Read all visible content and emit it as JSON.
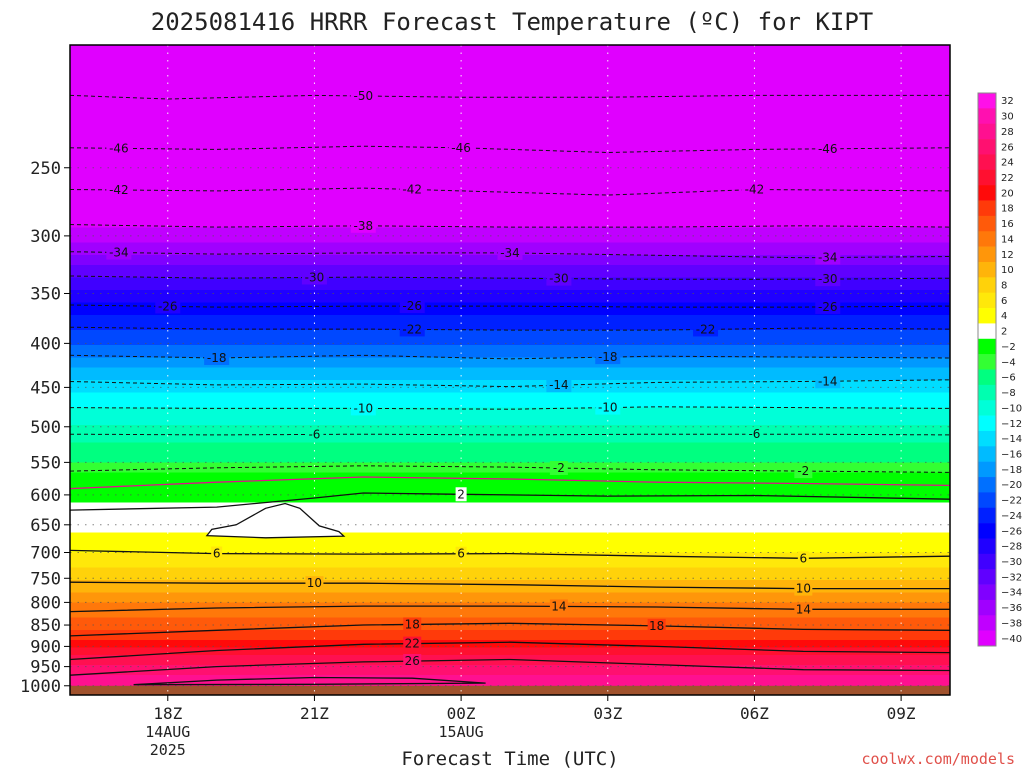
{
  "colors": {
    "ground": "#a0522d",
    "background": "#ffffff",
    "credit": "#e0504a",
    "freezing_line": "#e0108a"
  },
  "chart_data": {
    "type": "contour",
    "title": "2025081416 HRRR Forecast Temperature (ºC) for KIPT",
    "xlabel": "Forecast Time (UTC)",
    "credit": "coolwx.com/models",
    "x_unit": "hours from 2025-08-14 16Z",
    "xlim": [
      0,
      18
    ],
    "ylim": [
      1025,
      180
    ],
    "y_scale": "log-pressure (hPa, inverted)",
    "y_ticks": [
      250,
      300,
      350,
      400,
      450,
      500,
      550,
      600,
      650,
      700,
      750,
      800,
      850,
      900,
      950,
      1000
    ],
    "y_tick_labels": [
      "250",
      "300",
      "350",
      "400",
      "450",
      "500",
      "550",
      "600",
      "650",
      "700",
      "750",
      "800",
      "850",
      "900",
      "950",
      "1000"
    ],
    "x_ticks": [
      {
        "x": 2,
        "label": "18Z",
        "sub1": "14AUG",
        "sub2": "2025"
      },
      {
        "x": 5,
        "label": "21Z",
        "sub1": "",
        "sub2": ""
      },
      {
        "x": 8,
        "label": "00Z",
        "sub1": "15AUG",
        "sub2": ""
      },
      {
        "x": 11,
        "label": "03Z",
        "sub1": "",
        "sub2": ""
      },
      {
        "x": 14,
        "label": "06Z",
        "sub1": "",
        "sub2": ""
      },
      {
        "x": 17,
        "label": "09Z",
        "sub1": "",
        "sub2": ""
      }
    ],
    "ground_pressure": 1000,
    "profile": [
      [
        1000,
        30
      ],
      [
        950,
        27
      ],
      [
        900,
        22
      ],
      [
        850,
        17
      ],
      [
        800,
        14
      ],
      [
        750,
        10
      ],
      [
        700,
        6
      ],
      [
        650,
        3.5
      ],
      [
        600,
        1.5
      ],
      [
        580,
        0
      ],
      [
        550,
        -4
      ],
      [
        500,
        -7.5
      ],
      [
        450,
        -12.5
      ],
      [
        400,
        -20
      ],
      [
        350,
        -27
      ],
      [
        300,
        -37
      ],
      [
        250,
        -45
      ],
      [
        200,
        -52
      ]
    ],
    "colorbar": {
      "levels": [
        32,
        30,
        28,
        26,
        24,
        22,
        20,
        18,
        16,
        14,
        12,
        10,
        8,
        6,
        4,
        2,
        -2,
        -4,
        -6,
        -8,
        -10,
        -12,
        -14,
        -16,
        -18,
        -20,
        -22,
        -24,
        -26,
        -28,
        -30,
        -32,
        -34,
        -36,
        -38,
        -40
      ],
      "labels": [
        "32",
        "30",
        "28",
        "26",
        "24",
        "22",
        "20",
        "18",
        "16",
        "14",
        "12",
        "10",
        "8",
        "6",
        "4",
        "2",
        "−2",
        "−4",
        "−6",
        "−8",
        "−10",
        "−12",
        "−14",
        "−16",
        "−18",
        "−20",
        "−22",
        "−24",
        "−26",
        "−28",
        "−30",
        "−32",
        "−34",
        "−36",
        "−38",
        "−40"
      ],
      "colors": [
        "#ff10e8",
        "#ff10b0",
        "#ff1090",
        "#ff1070",
        "#ff1050",
        "#ff1030",
        "#ff0a0a",
        "#ff3a0a",
        "#ff5a0a",
        "#ff780a",
        "#ff960a",
        "#ffb40a",
        "#ffd20a",
        "#ffe80a",
        "#ffff00",
        "#ffffff",
        "#00ff00",
        "#33ff33",
        "#00ff80",
        "#00ffb0",
        "#00ffd8",
        "#00ffff",
        "#00ddff",
        "#00bbff",
        "#0099ff",
        "#0070ff",
        "#0048ff",
        "#0020ff",
        "#0000ff",
        "#2000ff",
        "#4000ff",
        "#6000ff",
        "#8000ff",
        "#a000ff",
        "#c000ff",
        "#e000ff"
      ]
    },
    "contours": [
      {
        "value": -50,
        "label": "-50",
        "style": "dash",
        "points": [
          [
            0,
            206
          ],
          [
            2,
            208
          ],
          [
            5,
            206
          ],
          [
            8,
            207
          ],
          [
            11,
            207
          ],
          [
            14,
            206
          ],
          [
            18,
            206
          ]
        ],
        "label_x": [
          6
        ]
      },
      {
        "value": -46,
        "label": "-46",
        "style": "dash",
        "points": [
          [
            0,
            237
          ],
          [
            3,
            238
          ],
          [
            6,
            236
          ],
          [
            8,
            237
          ],
          [
            11,
            240
          ],
          [
            14,
            238
          ],
          [
            18,
            237
          ]
        ],
        "label_x": [
          1,
          8,
          15.5
        ]
      },
      {
        "value": -42,
        "label": "-42",
        "style": "dash",
        "points": [
          [
            0,
            265
          ],
          [
            3,
            266
          ],
          [
            6,
            264
          ],
          [
            8,
            266
          ],
          [
            11,
            269
          ],
          [
            14,
            265
          ],
          [
            18,
            266
          ]
        ],
        "label_x": [
          1,
          7,
          14
        ]
      },
      {
        "value": -38,
        "label": "-38",
        "style": "dash",
        "points": [
          [
            0,
            291
          ],
          [
            3,
            293
          ],
          [
            6,
            292
          ],
          [
            9,
            293
          ],
          [
            12,
            293
          ],
          [
            15,
            292
          ],
          [
            18,
            293
          ]
        ],
        "label_x": [
          6
        ]
      },
      {
        "value": -34,
        "label": "-34",
        "style": "dash",
        "points": [
          [
            0,
            313
          ],
          [
            3,
            315
          ],
          [
            6,
            314
          ],
          [
            9,
            314
          ],
          [
            12,
            316
          ],
          [
            15,
            318
          ],
          [
            18,
            317
          ]
        ],
        "label_x": [
          1,
          9,
          15.5
        ]
      },
      {
        "value": -30,
        "label": "-30",
        "style": "dash",
        "points": [
          [
            0,
            334
          ],
          [
            3,
            336
          ],
          [
            6,
            335
          ],
          [
            9,
            336
          ],
          [
            12,
            337
          ],
          [
            15,
            337
          ],
          [
            18,
            336
          ]
        ],
        "label_x": [
          5,
          10,
          15.5
        ]
      },
      {
        "value": -26,
        "label": "-26",
        "style": "dash",
        "points": [
          [
            0,
            361
          ],
          [
            3,
            363
          ],
          [
            6,
            362
          ],
          [
            9,
            362
          ],
          [
            12,
            363
          ],
          [
            15,
            363
          ],
          [
            18,
            362
          ]
        ],
        "label_x": [
          2,
          7,
          15.5
        ]
      },
      {
        "value": -22,
        "label": "-22",
        "style": "dash",
        "points": [
          [
            0,
            383
          ],
          [
            3,
            385
          ],
          [
            6,
            385
          ],
          [
            9,
            386
          ],
          [
            12,
            386
          ],
          [
            15,
            384
          ],
          [
            18,
            385
          ]
        ],
        "label_x": [
          7,
          13
        ]
      },
      {
        "value": -18,
        "label": "-18",
        "style": "dash",
        "points": [
          [
            0,
            413
          ],
          [
            3,
            416
          ],
          [
            6,
            413
          ],
          [
            9,
            417
          ],
          [
            12,
            414
          ],
          [
            15,
            415
          ],
          [
            18,
            416
          ]
        ],
        "label_x": [
          3,
          11
        ]
      },
      {
        "value": -14,
        "label": "-14",
        "style": "dash",
        "points": [
          [
            0,
            443
          ],
          [
            3,
            447
          ],
          [
            6,
            446
          ],
          [
            9,
            449
          ],
          [
            12,
            444
          ],
          [
            15,
            443
          ],
          [
            18,
            441
          ]
        ],
        "label_x": [
          10,
          15.5
        ]
      },
      {
        "value": -10,
        "label": "-10",
        "style": "dash",
        "points": [
          [
            0,
            475
          ],
          [
            3,
            476
          ],
          [
            6,
            476
          ],
          [
            9,
            477
          ],
          [
            12,
            474
          ],
          [
            15,
            475
          ],
          [
            18,
            476
          ]
        ],
        "label_x": [
          6,
          11
        ]
      },
      {
        "value": -6,
        "label": "-6",
        "style": "dash",
        "points": [
          [
            0,
            510
          ],
          [
            3,
            511
          ],
          [
            6,
            510
          ],
          [
            9,
            511
          ],
          [
            12,
            510
          ],
          [
            15,
            510
          ],
          [
            18,
            511
          ]
        ],
        "label_x": [
          5,
          14
        ]
      },
      {
        "value": -2,
        "label": "-2",
        "style": "dash",
        "points": [
          [
            0,
            563
          ],
          [
            3,
            558
          ],
          [
            6,
            555
          ],
          [
            9,
            557
          ],
          [
            12,
            561
          ],
          [
            15,
            563
          ],
          [
            18,
            565
          ]
        ],
        "label_x": [
          10,
          15
        ]
      },
      {
        "value": 0,
        "label": "",
        "style": "freeze",
        "points": [
          [
            0,
            590
          ],
          [
            3,
            580
          ],
          [
            6,
            572
          ],
          [
            9,
            575
          ],
          [
            12,
            580
          ],
          [
            15,
            582
          ],
          [
            18,
            585
          ]
        ],
        "label_x": []
      },
      {
        "value": 2,
        "label": "2",
        "style": "solid",
        "points": [
          [
            0,
            625
          ],
          [
            3,
            620
          ],
          [
            5,
            605
          ],
          [
            6,
            597
          ],
          [
            8,
            599
          ],
          [
            11,
            602
          ],
          [
            14,
            601
          ],
          [
            18,
            607
          ]
        ],
        "label_x": [
          8
        ]
      },
      {
        "value": 6,
        "label": "6",
        "style": "solid",
        "points": [
          [
            0,
            696
          ],
          [
            3,
            702
          ],
          [
            6,
            703
          ],
          [
            9,
            702
          ],
          [
            12,
            707
          ],
          [
            15,
            711
          ],
          [
            18,
            707
          ]
        ],
        "label_x": [
          3,
          8,
          15
        ]
      },
      {
        "value": 10,
        "label": "10",
        "style": "solid",
        "points": [
          [
            0,
            758
          ],
          [
            3,
            760
          ],
          [
            6,
            760
          ],
          [
            9,
            763
          ],
          [
            12,
            768
          ],
          [
            15,
            771
          ],
          [
            18,
            771
          ]
        ],
        "label_x": [
          5,
          15
        ]
      },
      {
        "value": 14,
        "label": "14",
        "style": "solid",
        "points": [
          [
            0,
            820
          ],
          [
            3,
            812
          ],
          [
            6,
            808
          ],
          [
            9,
            808
          ],
          [
            12,
            810
          ],
          [
            15,
            815
          ],
          [
            18,
            815
          ]
        ],
        "label_x": [
          10,
          15
        ]
      },
      {
        "value": 18,
        "label": "18",
        "style": "solid",
        "points": [
          [
            0,
            875
          ],
          [
            3,
            862
          ],
          [
            6,
            850
          ],
          [
            9,
            846
          ],
          [
            12,
            852
          ],
          [
            15,
            860
          ],
          [
            18,
            862
          ]
        ],
        "label_x": [
          7,
          12
        ]
      },
      {
        "value": 22,
        "label": "22",
        "style": "solid",
        "points": [
          [
            0,
            932
          ],
          [
            3,
            910
          ],
          [
            6,
            895
          ],
          [
            9,
            890
          ],
          [
            12,
            900
          ],
          [
            15,
            912
          ],
          [
            18,
            915
          ]
        ],
        "label_x": [
          7
        ]
      },
      {
        "value": 26,
        "label": "26",
        "style": "solid",
        "points": [
          [
            0,
            972
          ],
          [
            3,
            950
          ],
          [
            6,
            938
          ],
          [
            9,
            932
          ],
          [
            12,
            945
          ],
          [
            15,
            958
          ],
          [
            18,
            960
          ]
        ],
        "label_x": [
          7
        ]
      }
    ],
    "closed_contours": [
      {
        "value": 2,
        "label": "",
        "points": [
          [
            2.8,
            669
          ],
          [
            2.9,
            658
          ],
          [
            3.4,
            650
          ],
          [
            4.0,
            622
          ],
          [
            4.4,
            614
          ],
          [
            4.7,
            622
          ],
          [
            5.1,
            652
          ],
          [
            5.5,
            662
          ],
          [
            5.6,
            670
          ],
          [
            4.0,
            673
          ],
          [
            2.8,
            669
          ]
        ]
      },
      {
        "value": 30,
        "label": "",
        "points": [
          [
            1.3,
            997
          ],
          [
            3.0,
            985
          ],
          [
            5.0,
            978
          ],
          [
            7.0,
            980
          ],
          [
            8.5,
            993
          ],
          [
            5.0,
            996
          ],
          [
            1.3,
            997
          ]
        ]
      }
    ]
  }
}
